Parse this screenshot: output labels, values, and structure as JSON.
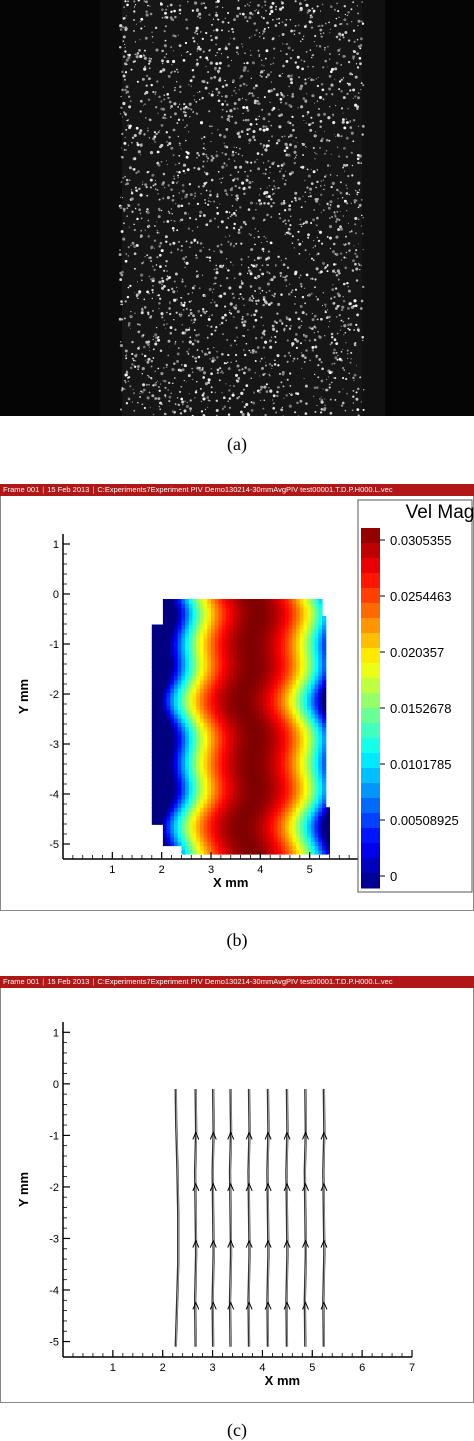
{
  "captions": {
    "a": "(a)",
    "b": "(b)",
    "c": "(c)"
  },
  "header": {
    "frame": "Frame 001",
    "date": "15 Feb 2013",
    "path": "C:Experiments7Experiment PIV Demo130214-30mmAvgPIV test00001.T.D.P.H000.L.vec"
  },
  "colors": {
    "header": "#b01818",
    "particles": "#e8e8e8",
    "stream": "#333333"
  },
  "chart_data": [
    {
      "type": "heatmap",
      "title": "",
      "xlabel": "X mm",
      "ylabel": "Y mm",
      "xlim": [
        0,
        6
      ],
      "ylim": [
        -5.3,
        1.2
      ],
      "x_ticks": [
        "1",
        "2",
        "3",
        "4",
        "5"
      ],
      "y_ticks": [
        "1",
        "0",
        "-1",
        "-2",
        "-3",
        "-4",
        "-5"
      ],
      "x_tick_values": [
        1,
        2,
        3,
        4,
        5
      ],
      "y_tick_values": [
        1,
        0,
        -1,
        -2,
        -3,
        -4,
        -5
      ],
      "legend": {
        "title": "Vel Mag",
        "position": "right",
        "labels": [
          "0.0305355",
          "0.0254463",
          "0.020357",
          "0.0152678",
          "0.0101785",
          "0.00508925",
          "0"
        ],
        "values": [
          0.0305355,
          0.0254463,
          0.020357,
          0.0152678,
          0.0101785,
          0.00508925,
          0
        ]
      },
      "field": {
        "x_range": [
          1.8,
          5.4
        ],
        "y_range": [
          -5.2,
          -0.1
        ],
        "peak_x": 3.8,
        "max_value": 0.0305355
      }
    },
    {
      "type": "line",
      "title": "",
      "xlabel": "X mm",
      "ylabel": "Y mm",
      "xlim": [
        0,
        7
      ],
      "ylim": [
        -5.3,
        1.2
      ],
      "x_ticks": [
        "1",
        "2",
        "3",
        "4",
        "5",
        "6",
        "7"
      ],
      "y_ticks": [
        "1",
        "0",
        "-1",
        "-2",
        "-3",
        "-4",
        "-5"
      ],
      "x_tick_values": [
        1,
        2,
        3,
        4,
        5,
        6,
        7
      ],
      "y_tick_values": [
        1,
        0,
        -1,
        -2,
        -3,
        -4,
        -5
      ],
      "series": [
        {
          "x": [
            2.25,
            2.27,
            2.3,
            2.3,
            2.28,
            2.26,
            2.25
          ],
          "y": [
            -5.1,
            -4.5,
            -3.5,
            -2.5,
            -1.5,
            -0.8,
            -0.1
          ]
        },
        {
          "x": [
            2.65,
            2.64,
            2.66,
            2.65,
            2.64,
            2.66,
            2.65
          ],
          "y": [
            -5.1,
            -4.2,
            -3.3,
            -2.5,
            -1.7,
            -0.9,
            -0.1
          ]
        },
        {
          "x": [
            3.0,
            2.99,
            3.01,
            3.0,
            2.99,
            3.01,
            3.0
          ],
          "y": [
            -5.1,
            -4.2,
            -3.3,
            -2.5,
            -1.7,
            -0.9,
            -0.1
          ]
        },
        {
          "x": [
            3.35,
            3.34,
            3.36,
            3.35,
            3.34,
            3.36,
            3.35
          ],
          "y": [
            -5.1,
            -4.2,
            -3.3,
            -2.5,
            -1.7,
            -0.9,
            -0.1
          ]
        },
        {
          "x": [
            3.72,
            3.71,
            3.73,
            3.72,
            3.71,
            3.73,
            3.72
          ],
          "y": [
            -5.1,
            -4.2,
            -3.3,
            -2.5,
            -1.7,
            -0.9,
            -0.1
          ]
        },
        {
          "x": [
            4.1,
            4.09,
            4.11,
            4.1,
            4.09,
            4.11,
            4.1
          ],
          "y": [
            -5.1,
            -4.2,
            -3.3,
            -2.5,
            -1.7,
            -0.9,
            -0.1
          ]
        },
        {
          "x": [
            4.48,
            4.47,
            4.49,
            4.48,
            4.47,
            4.49,
            4.48
          ],
          "y": [
            -5.1,
            -4.2,
            -3.3,
            -2.5,
            -1.7,
            -0.9,
            -0.1
          ]
        },
        {
          "x": [
            4.85,
            4.84,
            4.86,
            4.85,
            4.84,
            4.86,
            4.85
          ],
          "y": [
            -5.1,
            -4.2,
            -3.3,
            -2.5,
            -1.7,
            -0.9,
            -0.1
          ]
        },
        {
          "x": [
            5.22,
            5.21,
            5.23,
            5.22,
            5.21,
            5.23,
            5.22
          ],
          "y": [
            -5.1,
            -4.2,
            -3.3,
            -2.5,
            -1.7,
            -0.9,
            -0.1
          ]
        }
      ],
      "arrow_y": [
        -4.3,
        -3.1,
        -2.0,
        -1.0
      ]
    }
  ]
}
